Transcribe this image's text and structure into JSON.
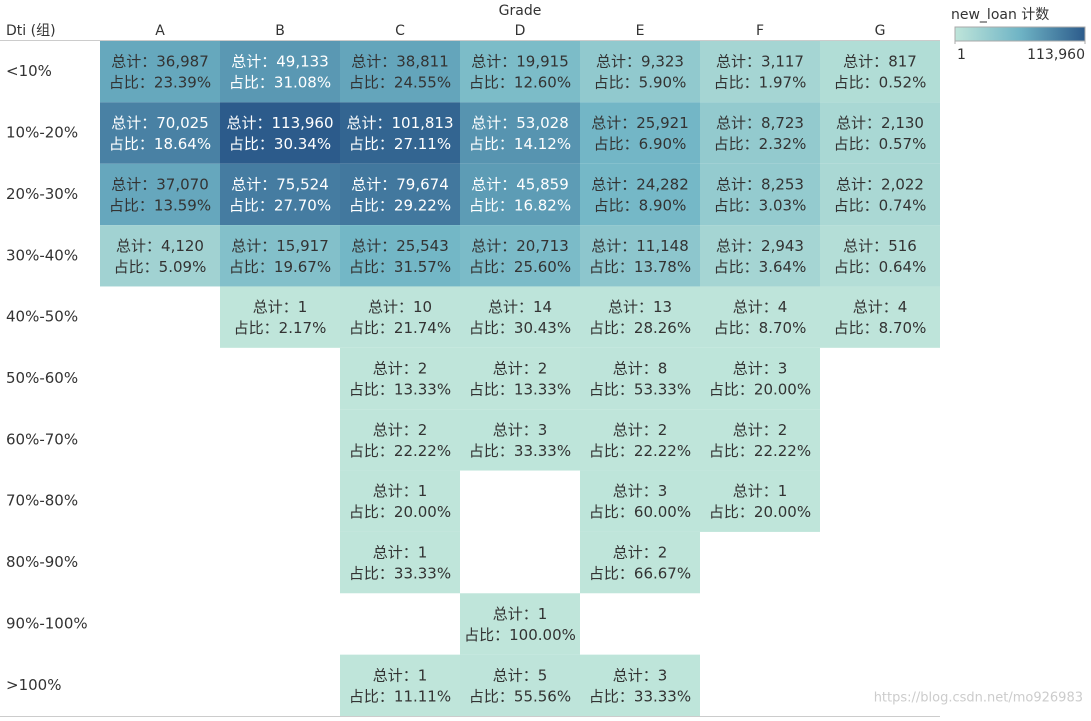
{
  "chart_data": {
    "type": "heatmap",
    "x_label": "Grade",
    "y_label": "Dti (组)",
    "categories": [
      "A",
      "B",
      "C",
      "D",
      "E",
      "F",
      "G"
    ],
    "rows": [
      "<10%",
      "10%-20%",
      "20%-30%",
      "30%-40%",
      "40%-50%",
      "50%-60%",
      "60%-70%",
      "70%-80%",
      "80%-90%",
      "90%-100%",
      ">100%"
    ],
    "count_prefix": "总计：",
    "share_prefix": "占比：",
    "values": [
      [
        36987,
        49133,
        38811,
        19915,
        9323,
        3117,
        817
      ],
      [
        70025,
        113960,
        101813,
        53028,
        25921,
        8723,
        2130
      ],
      [
        37070,
        75524,
        79674,
        45859,
        24282,
        8253,
        2022
      ],
      [
        4120,
        15917,
        25543,
        20713,
        11148,
        2943,
        516
      ],
      [
        null,
        1,
        10,
        14,
        13,
        4,
        4
      ],
      [
        null,
        null,
        2,
        2,
        8,
        3,
        null
      ],
      [
        null,
        null,
        2,
        3,
        2,
        2,
        null
      ],
      [
        null,
        null,
        1,
        null,
        3,
        1,
        null
      ],
      [
        null,
        null,
        1,
        null,
        2,
        null,
        null
      ],
      [
        null,
        null,
        null,
        1,
        null,
        null,
        null
      ],
      [
        null,
        null,
        1,
        5,
        3,
        null,
        null
      ]
    ],
    "value_labels": [
      [
        "36,987",
        "49,133",
        "38,811",
        "19,915",
        "9,323",
        "3,117",
        "817"
      ],
      [
        "70,025",
        "113,960",
        "101,813",
        "53,028",
        "25,921",
        "8,723",
        "2,130"
      ],
      [
        "37,070",
        "75,524",
        "79,674",
        "45,859",
        "24,282",
        "8,253",
        "2,022"
      ],
      [
        "4,120",
        "15,917",
        "25,543",
        "20,713",
        "11,148",
        "2,943",
        "516"
      ],
      [
        null,
        "1",
        "10",
        "14",
        "13",
        "4",
        "4"
      ],
      [
        null,
        null,
        "2",
        "2",
        "8",
        "3",
        null
      ],
      [
        null,
        null,
        "2",
        "3",
        "2",
        "2",
        null
      ],
      [
        null,
        null,
        "1",
        null,
        "3",
        "1",
        null
      ],
      [
        null,
        null,
        "1",
        null,
        "2",
        null,
        null
      ],
      [
        null,
        null,
        null,
        "1",
        null,
        null,
        null
      ],
      [
        null,
        null,
        "1",
        "5",
        "3",
        null,
        null
      ]
    ],
    "shares": [
      [
        23.39,
        31.08,
        24.55,
        12.6,
        5.9,
        1.97,
        0.52
      ],
      [
        18.64,
        30.34,
        27.11,
        14.12,
        6.9,
        2.32,
        0.57
      ],
      [
        13.59,
        27.7,
        29.22,
        16.82,
        8.9,
        3.03,
        0.74
      ],
      [
        5.09,
        19.67,
        31.57,
        25.6,
        13.78,
        3.64,
        0.64
      ],
      [
        null,
        2.17,
        21.74,
        30.43,
        28.26,
        8.7,
        8.7
      ],
      [
        null,
        null,
        13.33,
        13.33,
        53.33,
        20,
        null
      ],
      [
        null,
        null,
        22.22,
        33.33,
        22.22,
        22.22,
        null
      ],
      [
        null,
        null,
        20,
        null,
        60,
        20,
        null
      ],
      [
        null,
        null,
        33.33,
        null,
        66.67,
        null,
        null
      ],
      [
        null,
        null,
        null,
        100,
        null,
        null,
        null
      ],
      [
        null,
        null,
        11.11,
        55.56,
        33.33,
        null,
        null
      ]
    ],
    "share_labels": [
      [
        "23.39%",
        "31.08%",
        "24.55%",
        "12.60%",
        "5.90%",
        "1.97%",
        "0.52%"
      ],
      [
        "18.64%",
        "30.34%",
        "27.11%",
        "14.12%",
        "6.90%",
        "2.32%",
        "0.57%"
      ],
      [
        "13.59%",
        "27.70%",
        "29.22%",
        "16.82%",
        "8.90%",
        "3.03%",
        "0.74%"
      ],
      [
        "5.09%",
        "19.67%",
        "31.57%",
        "25.60%",
        "13.78%",
        "3.64%",
        "0.64%"
      ],
      [
        null,
        "2.17%",
        "21.74%",
        "30.43%",
        "28.26%",
        "8.70%",
        "8.70%"
      ],
      [
        null,
        null,
        "13.33%",
        "13.33%",
        "53.33%",
        "20.00%",
        null
      ],
      [
        null,
        null,
        "22.22%",
        "33.33%",
        "22.22%",
        "22.22%",
        null
      ],
      [
        null,
        null,
        "20.00%",
        null,
        "60.00%",
        "20.00%",
        null
      ],
      [
        null,
        null,
        "33.33%",
        null,
        "66.67%",
        null,
        null
      ],
      [
        null,
        null,
        null,
        "100.00%",
        null,
        null,
        null
      ],
      [
        null,
        null,
        "11.11%",
        "55.56%",
        "33.33%",
        null,
        null
      ]
    ],
    "legend_title": "new_loan 计数",
    "color_range": [
      1,
      113960
    ],
    "color_ticks": [
      1,
      {
        "value": 113960,
        "label": "113,960"
      }
    ],
    "colors": [
      "#bfe5da",
      "#6fb4c5",
      "#2c5b8b"
    ],
    "watermark": "https://blog.csdn.net/mo926983"
  }
}
